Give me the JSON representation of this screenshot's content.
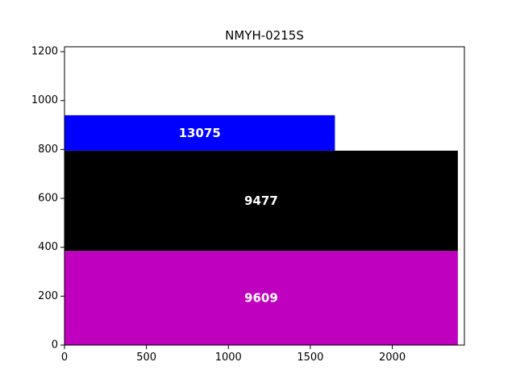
{
  "chart_data": {
    "type": "bar",
    "title": "NMYH-0215S",
    "xlabel": "",
    "ylabel": "",
    "xlim": [
      0,
      2440
    ],
    "ylim": [
      0,
      1220
    ],
    "x_ticks": [
      "0",
      "500",
      "1000",
      "1500",
      "2000"
    ],
    "y_ticks": [
      "0",
      "200",
      "400",
      "600",
      "800",
      "1000",
      "1200"
    ],
    "grid": false,
    "bars": [
      {
        "label": "9609",
        "x_start": 0,
        "x_end": 2400,
        "y_start": 0,
        "y_end": 385,
        "color": "#bf00bf"
      },
      {
        "label": "9477",
        "x_start": 0,
        "x_end": 2400,
        "y_start": 385,
        "y_end": 795,
        "color": "#000000"
      },
      {
        "label": "13075",
        "x_start": 0,
        "x_end": 1650,
        "y_start": 795,
        "y_end": 940,
        "color": "#0000ff"
      }
    ]
  }
}
